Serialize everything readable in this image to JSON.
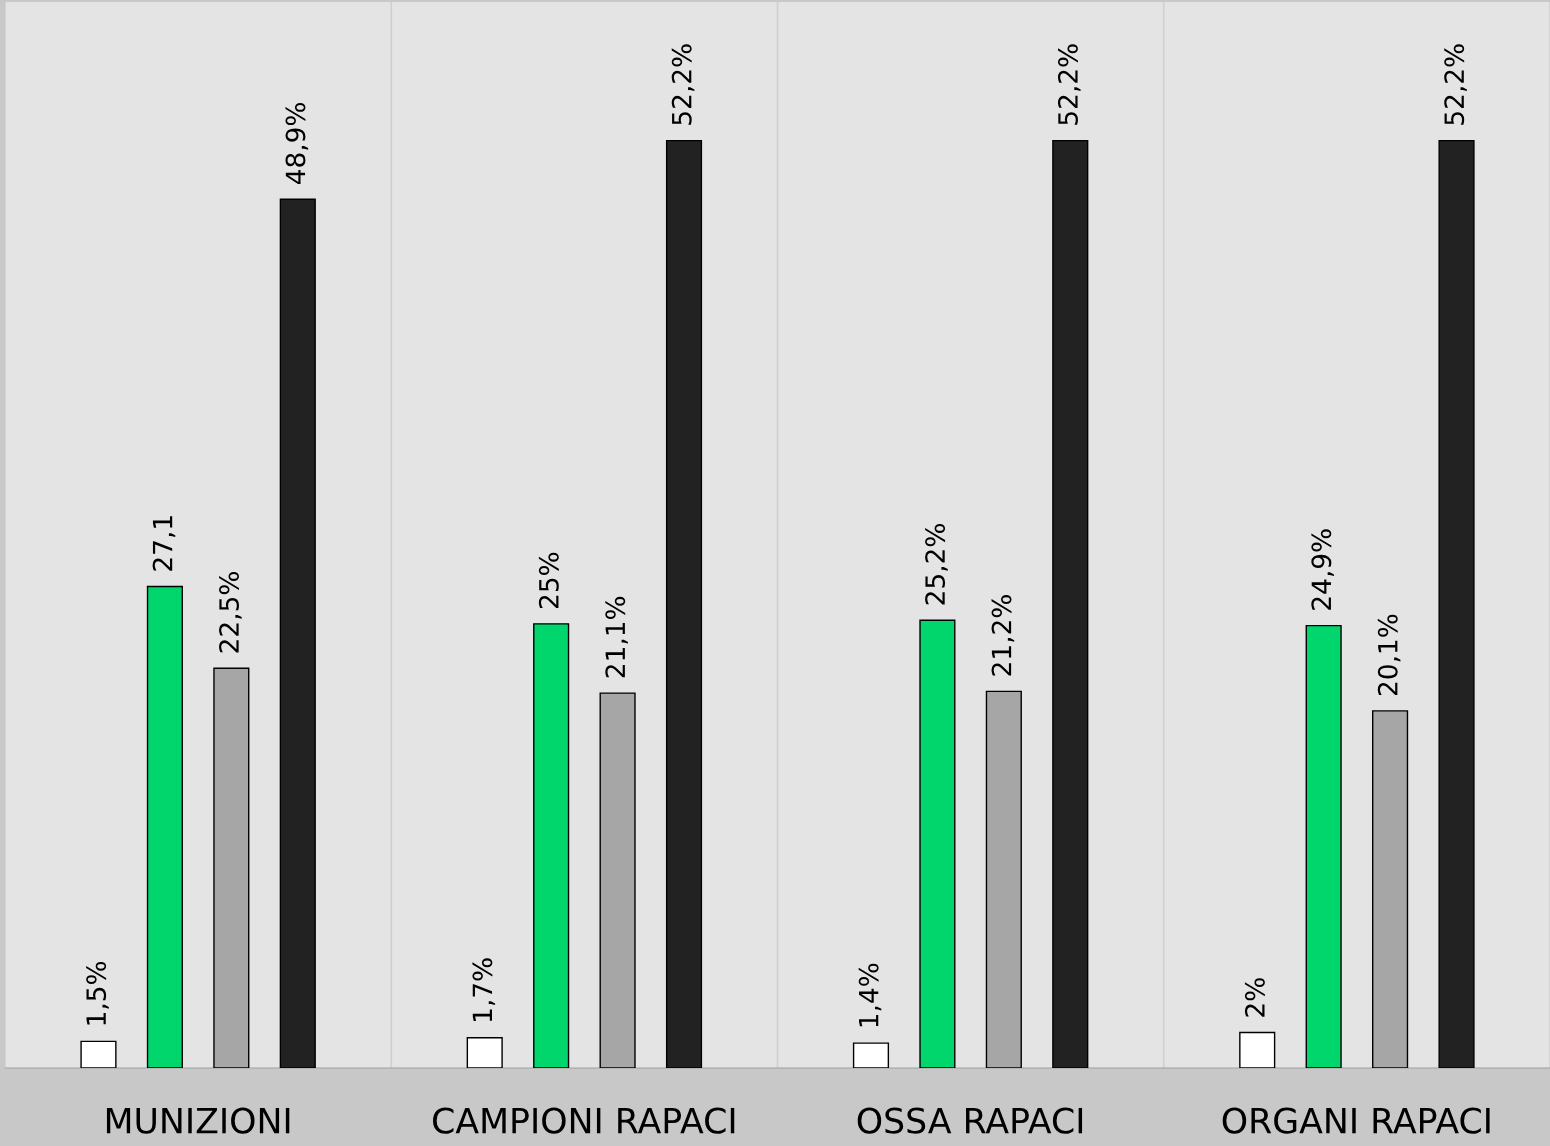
{
  "chart_data": {
    "type": "bar",
    "categories": [
      "MUNIZIONI",
      "CAMPIONI RAPACI",
      "OSSA RAPACI",
      "ORGANI RAPACI"
    ],
    "series": [
      {
        "color": "#ffffff",
        "values": [
          1.5,
          1.7,
          1.4,
          2
        ],
        "value_labels": [
          "1,5%",
          "1,7%",
          "1,4%",
          "2%"
        ]
      },
      {
        "color": "#00d66b",
        "values": [
          27.1,
          25,
          25.2,
          24.9
        ],
        "value_labels": [
          "27,1",
          "25%",
          "25,2%",
          "24,9%"
        ]
      },
      {
        "color": "#a6a6a6",
        "values": [
          22.5,
          21.1,
          21.2,
          20.1
        ],
        "value_labels": [
          "22,5%",
          "21,1%",
          "21,2%",
          "20,1%"
        ]
      },
      {
        "color": "#222222",
        "values": [
          48.9,
          52.2,
          52.2,
          52.2
        ],
        "value_labels": [
          "48,9%",
          "52,2%",
          "52,2%",
          "52,2%"
        ]
      }
    ],
    "ylim": [
      0,
      60
    ],
    "grid": "x",
    "legend": false,
    "tick_labels": "x"
  }
}
